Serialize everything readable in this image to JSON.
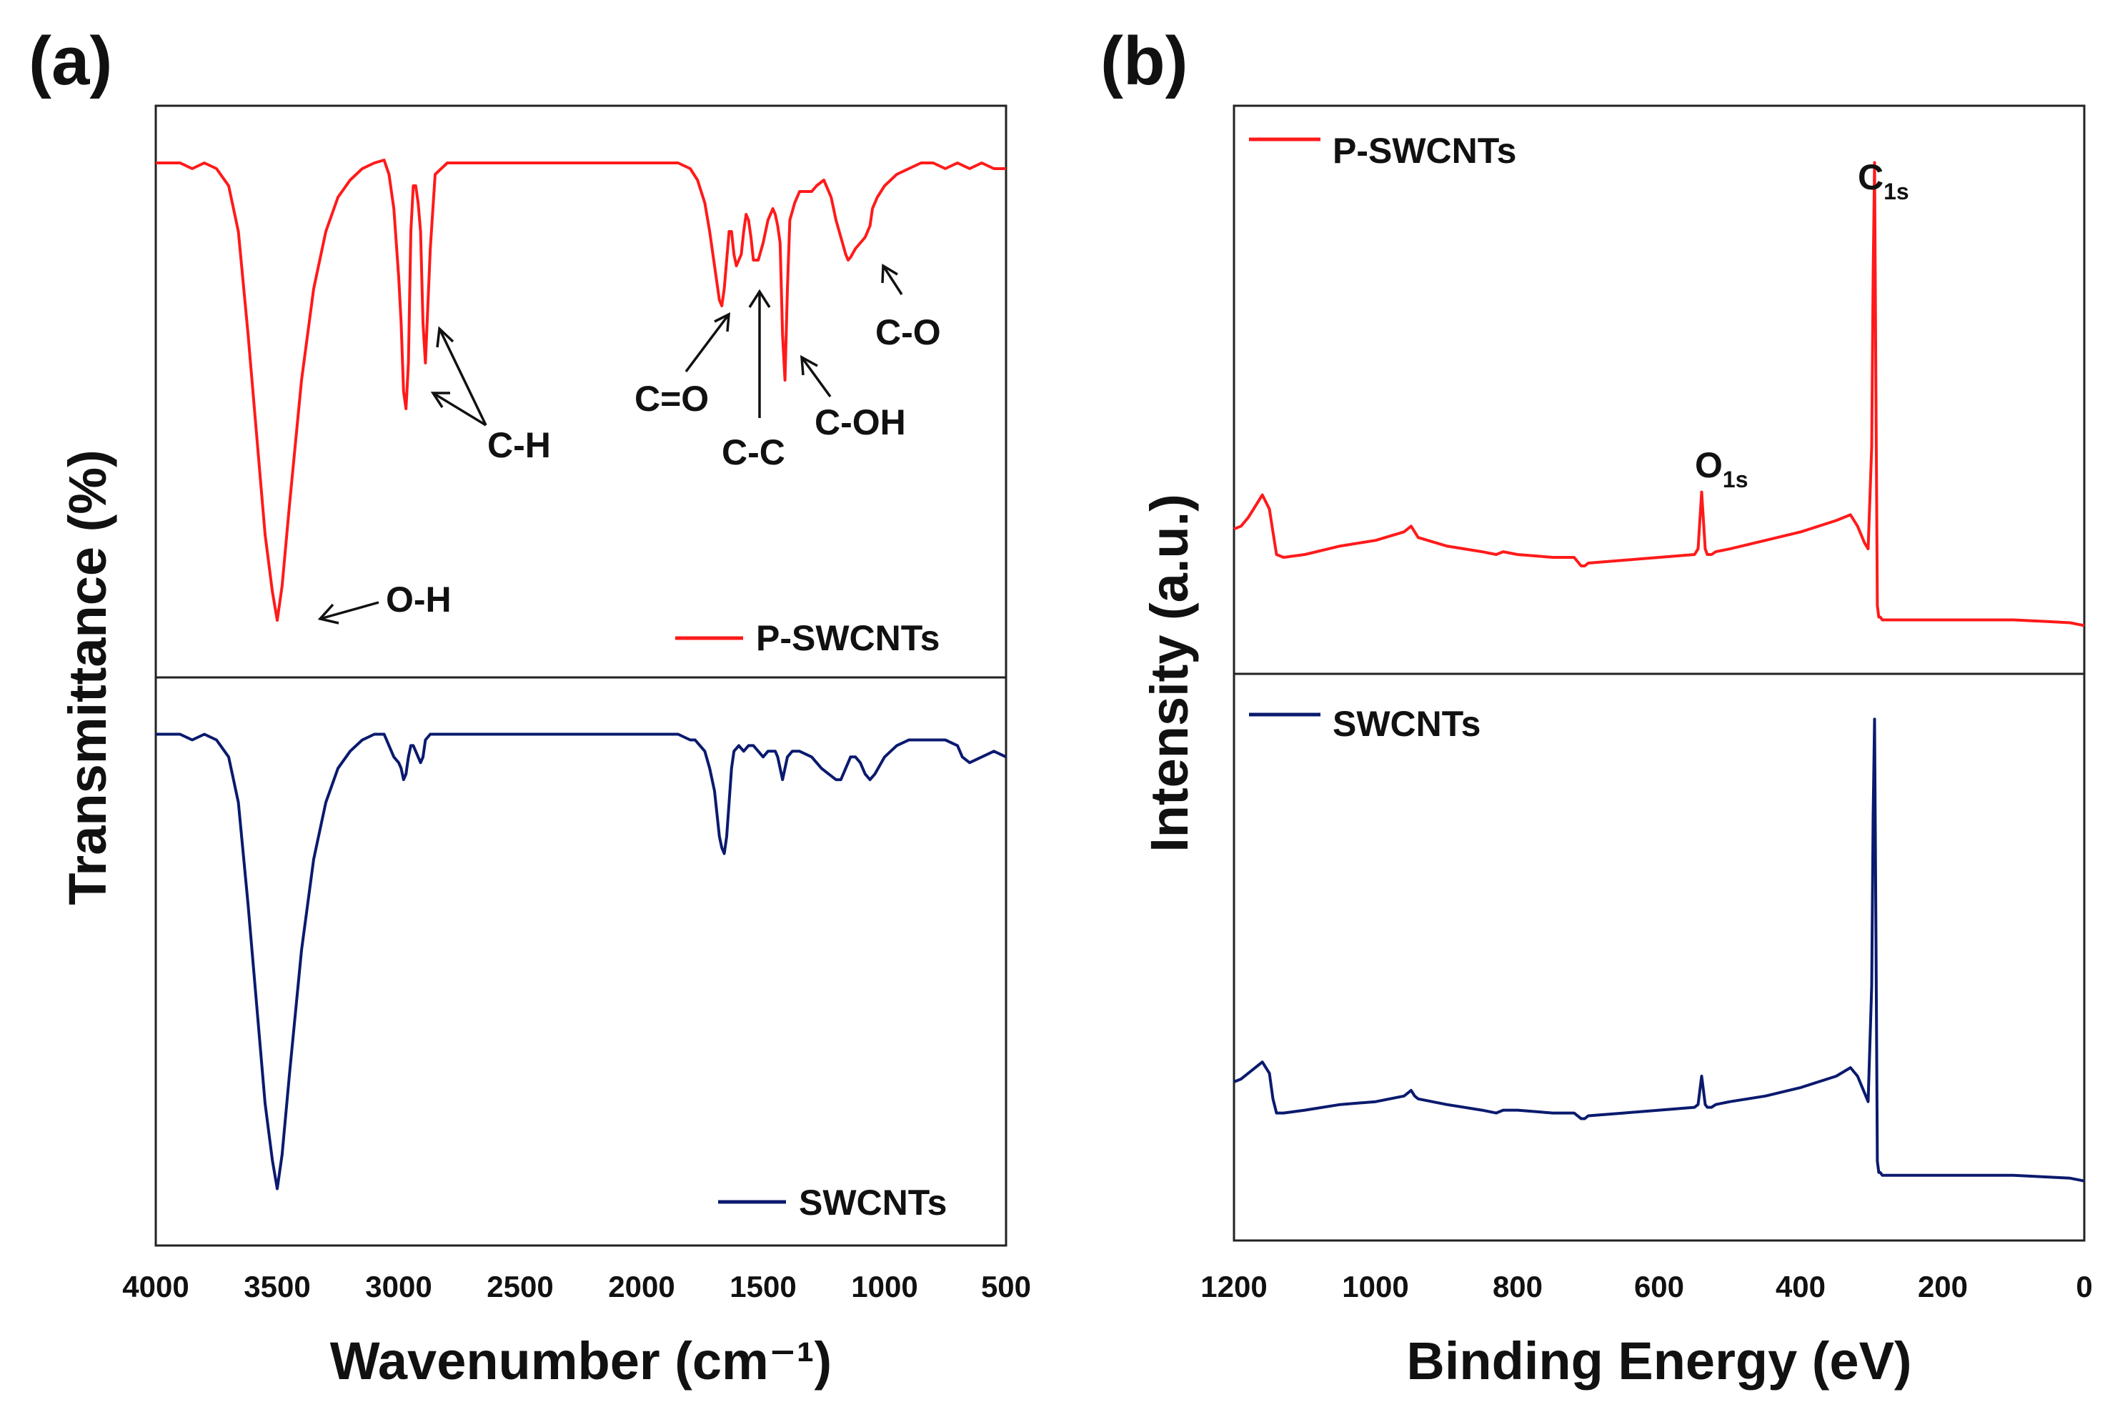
{
  "colors": {
    "p_swcnts": "#ff1a1a",
    "swcnts": "#0a1a6e",
    "axis": "#222222"
  },
  "chart_data": [
    {
      "type": "line",
      "panel_label": "(a)",
      "title": "",
      "xlabel": "Wavenumber (cm⁻¹)",
      "ylabel": "Transmittance (%)",
      "xlim": [
        4000,
        500
      ],
      "x_inverted": true,
      "xticks": [
        "4000",
        "3500",
        "3000",
        "2500",
        "2000",
        "1500",
        "1000",
        "500"
      ],
      "yticks_shown": false,
      "subplots": [
        {
          "legend": "P-SWCNTs",
          "legend_position": "bottom-right",
          "color": "#ff1a1a",
          "ylim": [
            0,
            100
          ],
          "series": [
            {
              "name": "P-SWCNTs",
              "x": [
                4000,
                3900,
                3850,
                3800,
                3750,
                3700,
                3660,
                3620,
                3580,
                3550,
                3520,
                3500,
                3480,
                3450,
                3400,
                3350,
                3300,
                3250,
                3200,
                3150,
                3100,
                3060,
                3040,
                3020,
                3000,
                2990,
                2980,
                2970,
                2960,
                2950,
                2940,
                2930,
                2920,
                2910,
                2900,
                2890,
                2870,
                2850,
                2800,
                2500,
                2000,
                1850,
                1800,
                1770,
                1740,
                1720,
                1700,
                1680,
                1670,
                1660,
                1650,
                1640,
                1630,
                1620,
                1610,
                1600,
                1590,
                1580,
                1570,
                1560,
                1550,
                1540,
                1520,
                1500,
                1480,
                1460,
                1450,
                1440,
                1430,
                1420,
                1410,
                1400,
                1390,
                1370,
                1350,
                1300,
                1280,
                1250,
                1220,
                1200,
                1180,
                1160,
                1150,
                1140,
                1120,
                1100,
                1080,
                1060,
                1050,
                1030,
                1000,
                950,
                900,
                850,
                800,
                750,
                700,
                650,
                600,
                550,
                500
              ],
              "y": [
                90,
                90,
                89,
                90,
                89,
                86,
                78,
                60,
                40,
                25,
                15,
                10,
                16,
                30,
                52,
                68,
                78,
                84,
                87,
                89,
                90,
                90.5,
                88,
                82,
                70,
                62,
                50,
                47,
                55,
                78,
                86,
                86,
                83,
                78,
                62,
                55,
                75,
                88,
                90,
                90,
                90,
                90,
                89,
                87,
                83,
                78,
                72,
                66,
                65,
                68,
                73,
                78,
                78,
                74,
                72,
                73,
                74,
                78,
                81,
                80,
                77,
                73,
                73,
                76,
                80,
                82,
                81,
                79,
                76,
                60,
                52,
                68,
                80,
                83,
                85,
                85,
                86,
                87,
                84,
                80,
                77,
                74,
                73,
                73.5,
                75,
                76,
                77,
                79,
                82,
                84,
                86,
                88,
                89,
                90,
                90,
                89,
                90,
                89,
                90,
                89,
                89
              ]
            }
          ]
        },
        {
          "legend": "SWCNTs",
          "legend_position": "bottom-right",
          "color": "#0a1a6e",
          "ylim": [
            0,
            100
          ],
          "series": [
            {
              "name": "SWCNTs",
              "x": [
                4000,
                3900,
                3850,
                3800,
                3750,
                3700,
                3660,
                3620,
                3580,
                3550,
                3520,
                3500,
                3480,
                3450,
                3400,
                3350,
                3300,
                3250,
                3200,
                3150,
                3100,
                3060,
                3040,
                3020,
                3000,
                2990,
                2980,
                2970,
                2960,
                2950,
                2940,
                2930,
                2920,
                2910,
                2900,
                2890,
                2870,
                2850,
                2800,
                2500,
                2000,
                1850,
                1800,
                1780,
                1760,
                1740,
                1720,
                1700,
                1690,
                1680,
                1670,
                1660,
                1650,
                1640,
                1630,
                1620,
                1600,
                1580,
                1560,
                1540,
                1520,
                1500,
                1480,
                1460,
                1450,
                1440,
                1430,
                1420,
                1410,
                1400,
                1380,
                1350,
                1300,
                1260,
                1230,
                1200,
                1180,
                1160,
                1140,
                1120,
                1100,
                1080,
                1060,
                1040,
                1000,
                950,
                900,
                850,
                800,
                750,
                700,
                680,
                650,
                600,
                550,
                500
              ],
              "y": [
                90,
                90,
                89,
                90,
                89,
                86,
                78,
                60,
                40,
                25,
                15,
                10,
                16,
                30,
                52,
                68,
                78,
                84,
                87,
                89,
                90,
                90,
                88,
                86,
                85,
                84,
                82,
                83,
                86,
                88,
                88,
                87,
                86,
                85,
                86,
                89,
                90,
                90,
                90,
                90,
                90,
                90,
                89,
                89,
                88,
                87,
                84,
                80,
                76,
                72,
                70,
                69,
                72,
                78,
                84,
                87,
                88,
                87,
                88,
                88,
                87,
                86,
                87,
                87,
                87,
                86,
                84,
                82,
                84,
                86,
                87,
                87,
                86,
                84,
                83,
                82,
                82,
                84,
                86,
                86,
                85,
                83,
                82,
                83,
                86,
                88,
                89,
                89,
                89,
                89,
                88,
                86,
                85,
                86,
                87,
                86
              ]
            }
          ]
        }
      ],
      "annotations": [
        "O-H",
        "C-H",
        "C=O",
        "C-C",
        "C-OH",
        "C-O"
      ]
    },
    {
      "type": "line",
      "panel_label": "(b)",
      "title": "",
      "xlabel": "Binding Energy (eV)",
      "ylabel": "Intensity (a.u.)",
      "xlim": [
        1200,
        0
      ],
      "x_inverted": true,
      "xticks": [
        "1200",
        "1000",
        "800",
        "600",
        "400",
        "200",
        "0"
      ],
      "yticks_shown": false,
      "subplots": [
        {
          "legend": "P-SWCNTs",
          "legend_position": "top-left",
          "color": "#ff1a1a",
          "ylim": [
            0,
            100
          ],
          "series": [
            {
              "name": "P-SWCNTs",
              "x": [
                1200,
                1190,
                1180,
                1170,
                1160,
                1150,
                1145,
                1140,
                1130,
                1100,
                1050,
                1000,
                960,
                950,
                945,
                940,
                900,
                850,
                830,
                820,
                800,
                750,
                720,
                710,
                705,
                700,
                650,
                600,
                550,
                545,
                540,
                535,
                532,
                530,
                526,
                520,
                500,
                450,
                400,
                350,
                330,
                320,
                310,
                305,
                300,
                298,
                296,
                294,
                292,
                290,
                288,
                285,
                280,
                250,
                200,
                150,
                100,
                50,
                20,
                0
              ],
              "y": [
                25.5,
                26,
                27.5,
                29.5,
                31.5,
                29,
                25,
                21,
                20.5,
                21,
                22.5,
                23.5,
                25,
                26,
                25,
                24,
                22.5,
                21.5,
                21,
                21.5,
                21,
                20.5,
                20.5,
                19,
                19,
                19.5,
                20,
                20.5,
                21,
                22,
                32,
                22,
                21,
                21,
                21,
                21.5,
                22,
                23.5,
                25,
                27,
                28,
                26,
                23,
                22,
                40,
                70,
                90,
                50,
                12,
                10,
                10,
                9.5,
                9.5,
                9.5,
                9.5,
                9.5,
                9.5,
                9.2,
                9,
                8.5
              ]
            }
          ]
        },
        {
          "legend": "SWCNTs",
          "legend_position": "top-left",
          "color": "#0a1a6e",
          "ylim": [
            0,
            100
          ],
          "series": [
            {
              "name": "SWCNTs",
              "x": [
                1200,
                1190,
                1180,
                1170,
                1160,
                1150,
                1145,
                1140,
                1130,
                1100,
                1050,
                1000,
                960,
                950,
                945,
                940,
                900,
                850,
                830,
                820,
                800,
                750,
                720,
                710,
                705,
                700,
                650,
                600,
                550,
                545,
                540,
                535,
                532,
                530,
                526,
                520,
                500,
                450,
                400,
                350,
                330,
                320,
                310,
                305,
                300,
                298,
                296,
                294,
                292,
                290,
                288,
                285,
                280,
                250,
                200,
                150,
                100,
                50,
                20,
                0
              ],
              "y": [
                28,
                28.5,
                29.5,
                30.5,
                31.5,
                29.5,
                25,
                22.5,
                22.5,
                23,
                24,
                24.5,
                25.5,
                26.5,
                25.5,
                25,
                24,
                23,
                22.5,
                23,
                23,
                22.5,
                22.5,
                21.5,
                21.5,
                22,
                22.5,
                23,
                23.5,
                24,
                29,
                24,
                23.5,
                23.5,
                23.5,
                24,
                24.5,
                25.5,
                27,
                29,
                30.5,
                29,
                26,
                24.5,
                45,
                75,
                92,
                55,
                14,
                12,
                12,
                11.5,
                11.5,
                11.5,
                11.5,
                11.5,
                11.5,
                11.2,
                11,
                10.5
              ]
            }
          ]
        }
      ],
      "peak_labels": [
        {
          "main": "C",
          "sub": "1s"
        },
        {
          "main": "O",
          "sub": "1s"
        }
      ]
    }
  ]
}
